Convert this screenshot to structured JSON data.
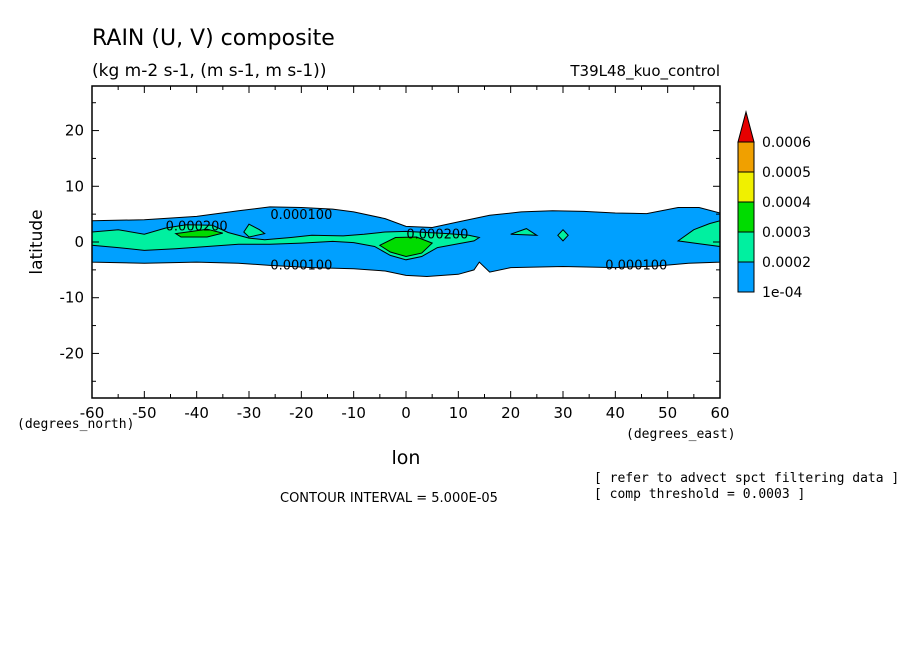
{
  "chart_data": {
    "type": "heatmap",
    "title": "RAIN (U, V) composite",
    "subtitle": "(kg m-2 s-1, (m s-1, m s-1))",
    "run_label": "T39L48_kuo_control",
    "xlabel": "lon",
    "ylabel": "latitude",
    "x_unit_label": "(degrees_east)",
    "y_unit_label": "(degrees_north)",
    "xlim": [
      -60,
      60
    ],
    "ylim": [
      -28,
      28
    ],
    "x_ticks": [
      -60,
      -50,
      -40,
      -30,
      -20,
      -10,
      0,
      10,
      20,
      30,
      40,
      50,
      60
    ],
    "y_ticks": [
      -20,
      -10,
      0,
      10,
      20
    ],
    "x_tick_labels": [
      "-60",
      "-50",
      "-40",
      "-30",
      "-20",
      "-10",
      "0",
      "10",
      "20",
      "30",
      "40",
      "50",
      "60"
    ],
    "y_tick_labels": [
      "-20",
      "-10",
      "0",
      "10",
      "20"
    ],
    "colorbar": {
      "levels": [
        "1e-04",
        "0.0002",
        "0.0003",
        "0.0004",
        "0.0005",
        "0.0006"
      ],
      "colors": [
        "#00a0ff",
        "#00f0a0",
        "#00dc00",
        "#f0f000",
        "#f0a000",
        "#e60000"
      ]
    },
    "contour_labels": [
      {
        "text": "0.000200",
        "lon": -40,
        "lat": 3
      },
      {
        "text": "0.000100",
        "lon": -20,
        "lat": 5
      },
      {
        "text": "0.000100",
        "lon": -20,
        "lat": -4
      },
      {
        "text": "0.000200",
        "lon": 6,
        "lat": 1.5
      },
      {
        "text": "0.000100",
        "lon": 44,
        "lat": -4
      }
    ],
    "regions": [
      {
        "level": 0,
        "points": [
          [
            -60,
            3.8
          ],
          [
            -50,
            4
          ],
          [
            -40,
            4.6
          ],
          [
            -32,
            5.6
          ],
          [
            -26,
            6.3
          ],
          [
            -20,
            6.2
          ],
          [
            -14,
            5.9
          ],
          [
            -10,
            5.4
          ],
          [
            -4,
            4.2
          ],
          [
            0,
            2.8
          ],
          [
            5,
            2.6
          ],
          [
            10,
            3.6
          ],
          [
            16,
            4.8
          ],
          [
            22,
            5.4
          ],
          [
            28,
            5.6
          ],
          [
            34,
            5.5
          ],
          [
            40,
            5.2
          ],
          [
            46,
            5.1
          ],
          [
            52,
            6.2
          ],
          [
            56,
            6.2
          ],
          [
            60,
            5.2
          ],
          [
            60,
            -3.6
          ],
          [
            54,
            -3.8
          ],
          [
            48,
            -4.3
          ],
          [
            40,
            -4.6
          ],
          [
            30,
            -4.4
          ],
          [
            20,
            -4.6
          ],
          [
            16,
            -5.4
          ],
          [
            14,
            -3.6
          ],
          [
            13,
            -5
          ],
          [
            10,
            -5.8
          ],
          [
            4,
            -6.2
          ],
          [
            0,
            -6
          ],
          [
            -4,
            -5.2
          ],
          [
            -10,
            -4.8
          ],
          [
            -18,
            -4.6
          ],
          [
            -26,
            -4.2
          ],
          [
            -32,
            -3.8
          ],
          [
            -40,
            -3.6
          ],
          [
            -50,
            -3.8
          ],
          [
            -60,
            -3.6
          ]
        ]
      },
      {
        "level": 1,
        "points": [
          [
            -60,
            1.8
          ],
          [
            -55,
            2.2
          ],
          [
            -50,
            1.4
          ],
          [
            -46,
            2.5
          ],
          [
            -42,
            3.1
          ],
          [
            -37,
            3
          ],
          [
            -34,
            1.7
          ],
          [
            -30,
            0.7
          ],
          [
            -27,
            0.4
          ],
          [
            -22,
            0.8
          ],
          [
            -18,
            1.2
          ],
          [
            -12,
            1.1
          ],
          [
            -8,
            1.4
          ],
          [
            -4,
            1.8
          ],
          [
            0,
            1.9
          ],
          [
            4,
            1.7
          ],
          [
            8,
            1.5
          ],
          [
            12,
            1.2
          ],
          [
            14,
            0.8
          ],
          [
            13,
            0.2
          ],
          [
            10,
            -0.3
          ],
          [
            6,
            -1
          ],
          [
            3,
            -2.6
          ],
          [
            0,
            -3.2
          ],
          [
            -3,
            -2.4
          ],
          [
            -6,
            -0.8
          ],
          [
            -10,
            -0.1
          ],
          [
            -14,
            0.1
          ],
          [
            -20,
            -0.2
          ],
          [
            -26,
            -0.4
          ],
          [
            -32,
            -0.4
          ],
          [
            -38,
            -0.8
          ],
          [
            -44,
            -1.2
          ],
          [
            -50,
            -1.5
          ],
          [
            -55,
            -1
          ],
          [
            -60,
            -0.6
          ]
        ]
      },
      {
        "level": 1,
        "points": [
          [
            -30,
            3.2
          ],
          [
            -28,
            2.2
          ],
          [
            -27,
            1.5
          ],
          [
            -30,
            0.9
          ],
          [
            -31,
            1.8
          ]
        ]
      },
      {
        "level": 1,
        "points": [
          [
            20,
            1.4
          ],
          [
            23,
            2.4
          ],
          [
            25,
            1.2
          ]
        ]
      },
      {
        "level": 1,
        "points": [
          [
            29,
            1.2
          ],
          [
            30,
            2.2
          ],
          [
            31,
            1.2
          ],
          [
            30,
            0.2
          ]
        ]
      },
      {
        "level": 1,
        "points": [
          [
            52,
            0.2
          ],
          [
            55,
            2.2
          ],
          [
            58,
            3.3
          ],
          [
            60,
            3.8
          ],
          [
            60,
            -0.8
          ],
          [
            56,
            -0.3
          ]
        ]
      },
      {
        "level": 2,
        "points": [
          [
            -44,
            1.5
          ],
          [
            -38,
            2.3
          ],
          [
            -35,
            1.6
          ],
          [
            -38,
            0.9
          ],
          [
            -43,
            0.9
          ]
        ]
      },
      {
        "level": 2,
        "points": [
          [
            -5,
            -0.6
          ],
          [
            -2,
            0.8
          ],
          [
            2,
            0.9
          ],
          [
            5,
            -0.2
          ],
          [
            3,
            -2
          ],
          [
            0,
            -2.6
          ],
          [
            -3,
            -1.8
          ]
        ]
      }
    ]
  }
}
